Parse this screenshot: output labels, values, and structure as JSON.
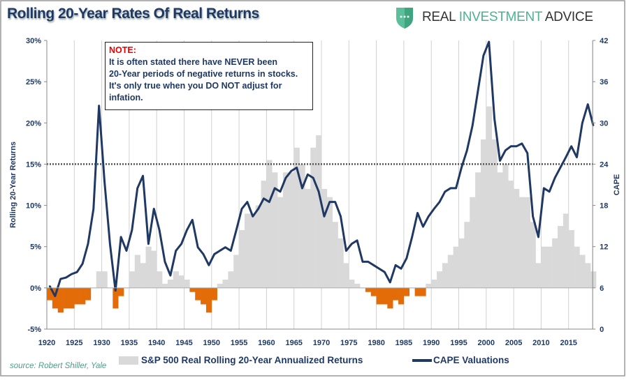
{
  "title": "Rolling 20-Year Rates Of Real Returns",
  "logo": {
    "part1": "REAL ",
    "part2": "INVESTMENT",
    "part3": " ADVICE",
    "brand_color": "#4db38f"
  },
  "note": {
    "heading": "NOTE:",
    "lines": [
      "It is often stated there have NEVER been",
      "20-Year periods of negative returns in stocks.",
      "It's only true when you DO NOT adjust for",
      "infation."
    ]
  },
  "source": "source: Robert Shiller, Yale",
  "chart_data": {
    "type": "area+line",
    "title": "Rolling 20-Year Rates Of Real Returns",
    "ylabel": "Rolling 20-Year Returns",
    "y2label": "CAPE",
    "ylim": [
      -5,
      30
    ],
    "y2lim": [
      0,
      42
    ],
    "xlim": [
      1920,
      2019
    ],
    "yticks": [
      "-5%",
      "0%",
      "5%",
      "10%",
      "15%",
      "20%",
      "25%",
      "30%"
    ],
    "yticks_values": [
      -5,
      0,
      5,
      10,
      15,
      20,
      25,
      30
    ],
    "y2ticks": [
      "0",
      "6",
      "12",
      "18",
      "24",
      "30",
      "36",
      "42"
    ],
    "y2ticks_values": [
      0,
      6,
      12,
      18,
      24,
      30,
      36,
      42
    ],
    "xticks": [
      "1920",
      "1925",
      "1930",
      "1935",
      "1940",
      "1945",
      "1950",
      "1955",
      "1960",
      "1965",
      "1970",
      "1975",
      "1980",
      "1985",
      "1990",
      "1995",
      "2000",
      "2005",
      "2010",
      "2015"
    ],
    "grid": "vertical",
    "legend_position": "bottom",
    "reference_line_cape": 24,
    "colors": {
      "positive": "#d9d9d9",
      "negative": "#e36c09",
      "cape": "#1f3864",
      "reference": "#555555"
    },
    "years": [
      1920,
      1921,
      1922,
      1923,
      1924,
      1925,
      1926,
      1927,
      1928,
      1929,
      1930,
      1931,
      1932,
      1933,
      1934,
      1935,
      1936,
      1937,
      1938,
      1939,
      1940,
      1941,
      1942,
      1943,
      1944,
      1945,
      1946,
      1947,
      1948,
      1949,
      1950,
      1951,
      1952,
      1953,
      1954,
      1955,
      1956,
      1957,
      1958,
      1959,
      1960,
      1961,
      1962,
      1963,
      1964,
      1965,
      1966,
      1967,
      1968,
      1969,
      1970,
      1971,
      1972,
      1973,
      1974,
      1975,
      1976,
      1977,
      1978,
      1979,
      1980,
      1981,
      1982,
      1983,
      1984,
      1985,
      1986,
      1987,
      1988,
      1989,
      1990,
      1991,
      1992,
      1993,
      1994,
      1995,
      1996,
      1997,
      1998,
      1999,
      2000,
      2001,
      2002,
      2003,
      2004,
      2005,
      2006,
      2007,
      2008,
      2009,
      2010,
      2011,
      2012,
      2013,
      2014,
      2015,
      2016,
      2017,
      2018,
      2019
    ],
    "series": [
      {
        "name": "S&P 500 Real Rolling 20-Year Annualized Returns",
        "axis": "left",
        "values": [
          -1.5,
          -2.5,
          -3,
          -2.5,
          -2.5,
          -2,
          -2,
          -1.5,
          0,
          2,
          2,
          0,
          -2.5,
          -1,
          0,
          2,
          4,
          3,
          5,
          4.5,
          2,
          0.5,
          1,
          2,
          1.5,
          1,
          -0.5,
          -1.5,
          -2,
          -3,
          -1.5,
          0.5,
          1,
          2,
          4,
          7,
          9,
          9,
          10,
          13,
          15.5,
          14,
          11,
          14,
          14,
          17,
          15,
          12,
          17,
          18.5,
          12,
          11,
          8,
          6,
          3,
          1,
          0.5,
          0,
          -0.5,
          -1,
          -2,
          -2,
          -2.5,
          -1.5,
          -2,
          -1,
          0,
          -1,
          -1,
          0.5,
          1,
          2,
          3,
          4,
          5,
          6,
          8,
          11,
          14,
          18,
          22,
          18,
          14,
          15,
          13,
          12,
          11,
          11,
          8,
          3,
          5,
          5,
          6,
          7.5,
          9,
          7,
          5,
          4,
          3,
          2
        ]
      },
      {
        "name": "CAPE Valuations",
        "axis": "right",
        "values": [
          6.3,
          4.8,
          7.3,
          7.5,
          8,
          8.3,
          9.5,
          12.4,
          17.5,
          32.5,
          21.5,
          12.4,
          5.6,
          13.4,
          11.4,
          14.4,
          20.5,
          22.3,
          12.4,
          17.5,
          14.4,
          9.8,
          7.8,
          11.4,
          12.4,
          14.4,
          15.9,
          11.9,
          10.9,
          9.3,
          10.9,
          11.4,
          11.9,
          11.4,
          14.4,
          17.5,
          18.5,
          16.4,
          17.5,
          19,
          18.5,
          20.5,
          20,
          22,
          23,
          23.5,
          20.5,
          22.5,
          22,
          20,
          16.4,
          18.5,
          18.5,
          16.4,
          11.4,
          12.4,
          12.9,
          9.8,
          9.8,
          9.3,
          8.8,
          8.3,
          6.8,
          9.3,
          8.8,
          10.3,
          13.4,
          16.9,
          14.9,
          16.4,
          17.5,
          18.5,
          20,
          20.5,
          20.5,
          23.5,
          26,
          29.6,
          34.7,
          39.8,
          41.8,
          30.6,
          24.5,
          26,
          26.6,
          26.6,
          27,
          25.6,
          16.4,
          13.4,
          20.5,
          20,
          22,
          23.5,
          25,
          26.6,
          25,
          30,
          32.7,
          29.6
        ]
      }
    ]
  }
}
